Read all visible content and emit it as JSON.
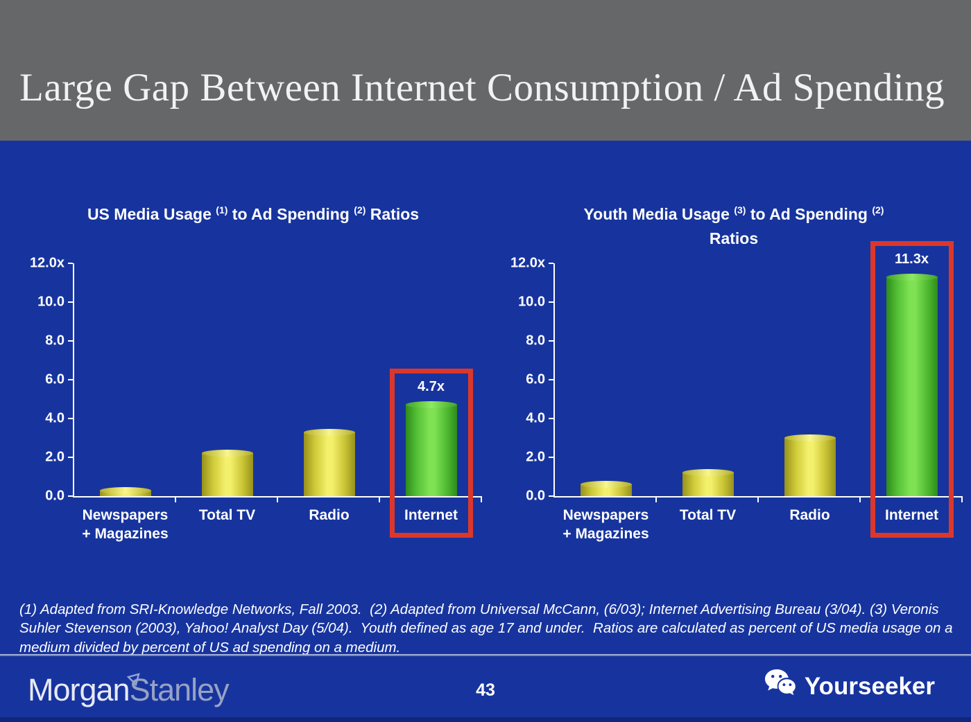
{
  "slide": {
    "title": "Large Gap Between Internet Consumption / Ad Spending",
    "footnote": "(1) Adapted from SRI-Knowledge Networks, Fall 2003.  (2) Adapted from Universal McCann, (6/03); Internet Advertising Bureau (3/04). (3) Veronis Suhler Stevenson (2003), Yahoo! Analyst Day (5/04).  Youth defined as age 17 and under.  Ratios are calculated as percent of US media usage on a medium divided by percent of US ad spending on a medium.",
    "page_number": "43",
    "brand": {
      "part1": "Morgan",
      "part2": "Stanley"
    },
    "watermark_label": "Yourseeker"
  },
  "icons": {
    "watermark_icon": "wechat-icon",
    "brand_flag": "triangle-flag-icon"
  },
  "colors": {
    "header_bg": "#666768",
    "body_bg": "#17349e",
    "bar_yellow": "#f3f06c",
    "bar_green": "#7fe254",
    "highlight_red": "#dc372b",
    "text": "#ffffff"
  },
  "chart_data": [
    {
      "type": "bar",
      "title_plain": "US Media Usage (1) to Ad Spending (2) Ratios",
      "title_parts": [
        {
          "text": "US Media Usage "
        },
        {
          "sup": "(1)"
        },
        {
          "text": " to Ad Spending "
        },
        {
          "sup": "(2)"
        },
        {
          "text": " Ratios"
        }
      ],
      "categories": [
        "Newspapers\n+ Magazines",
        "Total TV",
        "Radio",
        "Internet"
      ],
      "values": [
        0.3,
        2.2,
        3.3,
        4.7
      ],
      "bar_colors": [
        "yellow",
        "yellow",
        "yellow",
        "green"
      ],
      "data_labels": [
        "",
        "",
        "",
        "4.7x"
      ],
      "highlight_index": 3,
      "ylim": [
        0,
        12
      ],
      "ytick_labels": [
        "12.0x",
        "10.0",
        "8.0",
        "6.0",
        "4.0",
        "2.0",
        "0.0"
      ],
      "grid": false,
      "legend": false
    },
    {
      "type": "bar",
      "title_plain": "Youth Media Usage (3) to Ad Spending (2) Ratios",
      "title_parts": [
        {
          "text": "Youth Media Usage "
        },
        {
          "sup": "(3)"
        },
        {
          "text": " to Ad Spending "
        },
        {
          "sup": "(2)"
        },
        {
          "br": true
        },
        {
          "text": "Ratios"
        }
      ],
      "categories": [
        "Newspapers\n+ Magazines",
        "Total TV",
        "Radio",
        "Internet"
      ],
      "values": [
        0.6,
        1.2,
        3.0,
        11.3
      ],
      "bar_colors": [
        "yellow",
        "yellow",
        "yellow",
        "green"
      ],
      "data_labels": [
        "",
        "",
        "",
        "11.3x"
      ],
      "highlight_index": 3,
      "ylim": [
        0,
        12
      ],
      "ytick_labels": [
        "12.0x",
        "10.0",
        "8.0",
        "6.0",
        "4.0",
        "2.0",
        "0.0"
      ],
      "grid": false,
      "legend": false
    }
  ]
}
